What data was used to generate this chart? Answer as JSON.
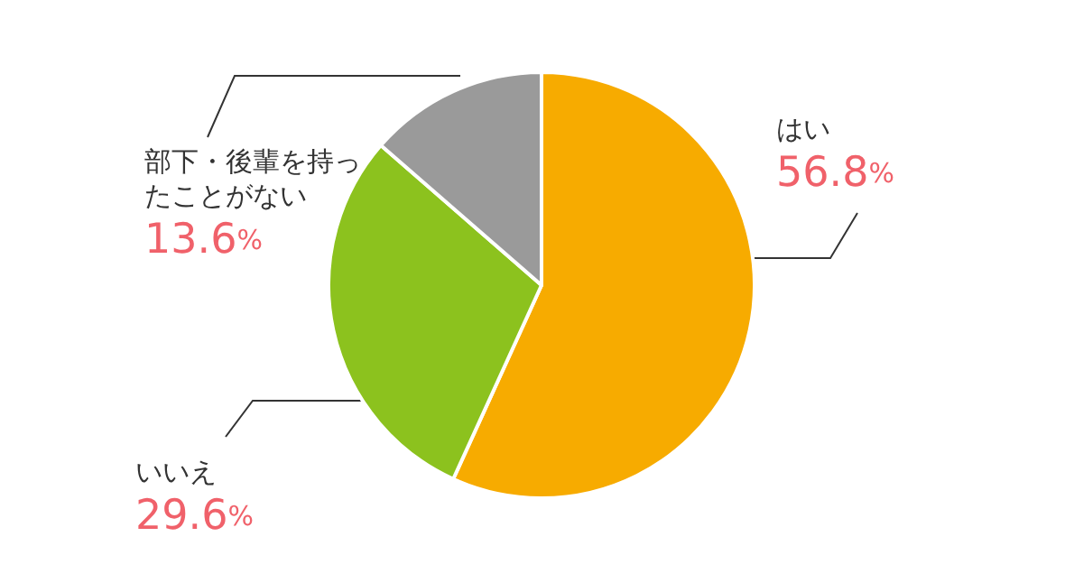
{
  "chart_data": {
    "type": "pie",
    "categories": [
      "はい",
      "いいえ",
      "部下・後輩を持ったことがない"
    ],
    "values": [
      56.8,
      29.6,
      13.6
    ],
    "colors": [
      "#f7ab00",
      "#8cc21e",
      "#9a9a9a"
    ],
    "value_labels": [
      "56.8%",
      "29.6%",
      "13.6%"
    ]
  }
}
